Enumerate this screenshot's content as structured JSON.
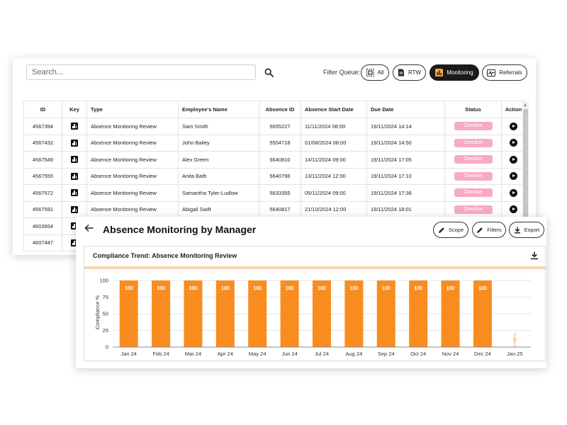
{
  "search": {
    "placeholder": "Search..."
  },
  "filter": {
    "label": "Filter Queue:",
    "options": [
      {
        "label": "All",
        "icon": "select-all-icon"
      },
      {
        "label": "RTW",
        "icon": "document-icon"
      },
      {
        "label": "Monitoring",
        "icon": "bar-chart-icon",
        "active": true
      },
      {
        "label": "Referrals",
        "icon": "pulse-icon"
      }
    ]
  },
  "table": {
    "headers": [
      "ID",
      "Key",
      "Type",
      "Employee's Name",
      "Absence ID",
      "Absence Start Date",
      "Due Date",
      "Status",
      "Action"
    ],
    "rows": [
      {
        "id": "4567394",
        "type": "Absence Monitoring Review",
        "name": "Sam Smith",
        "absence_id": "5655227",
        "start": "11/11/2024 08:00",
        "due": "19/11/2024 14:14",
        "status": "Overdue"
      },
      {
        "id": "4567432",
        "type": "Absence Monitoring Review",
        "name": "John Bailey",
        "absence_id": "5504718",
        "start": "01/08/2024 08:00",
        "due": "19/11/2024 14:50",
        "status": "Overdue"
      },
      {
        "id": "4567549",
        "type": "Absence Monitoring Review",
        "name": "Alex Green",
        "absence_id": "5640810",
        "start": "14/11/2024 09:00",
        "due": "19/11/2024 17:05",
        "status": "Overdue"
      },
      {
        "id": "4567555",
        "type": "Absence Monitoring Review",
        "name": "Anita Bath",
        "absence_id": "5640796",
        "start": "13/11/2024 12:00",
        "due": "19/11/2024 17:10",
        "status": "Overdue"
      },
      {
        "id": "4567572",
        "type": "Absence Monitoring Review",
        "name": "Samantha Tyler-Ludlow",
        "absence_id": "5633355",
        "start": "05/11/2024 09:00",
        "due": "19/11/2024 17:36",
        "status": "Overdue"
      },
      {
        "id": "4567591",
        "type": "Absence Monitoring Review",
        "name": "Abigail Swift",
        "absence_id": "5640817",
        "start": "21/10/2024 12:00",
        "due": "19/11/2024 18:01",
        "status": "Overdue"
      },
      {
        "id": "4603654",
        "type": "",
        "name": "",
        "absence_id": "",
        "start": "",
        "due": "",
        "status": ""
      },
      {
        "id": "4607447",
        "type": "",
        "name": "",
        "absence_id": "",
        "start": "",
        "due": "",
        "status": ""
      }
    ]
  },
  "panel": {
    "title": "Absence Monitoring by Manager",
    "buttons": {
      "scope": "Scope",
      "filters": "Filters",
      "export": "Export"
    },
    "card_title": "Compliance Trend: Absence Monitoring Review"
  },
  "colors": {
    "bar": "#f98c1f",
    "accent": "#f9d4ad",
    "badge": "#f8a9c4",
    "active_pill": "#1b1b1b"
  },
  "chart_data": {
    "type": "bar",
    "categories": [
      "Jan 24",
      "Feb 24",
      "Mar 24",
      "Apr 24",
      "May 24",
      "Jun 24",
      "Jul 24",
      "Aug 24",
      "Sep 24",
      "Oct 24",
      "Nov 24",
      "Dec 24",
      "Jan 25"
    ],
    "values": [
      100,
      100,
      100,
      100,
      100,
      100,
      100,
      100,
      100,
      100,
      100,
      100,
      0
    ],
    "data_labels": [
      "100",
      "100",
      "100",
      "100",
      "100",
      "100",
      "100",
      "100",
      "100",
      "100",
      "100",
      "100",
      "0"
    ],
    "ylabel": "Compliance %",
    "xlabel": "",
    "ylim": [
      0,
      100
    ],
    "yticks": [
      0,
      25,
      50,
      75,
      100
    ],
    "grid": true
  }
}
